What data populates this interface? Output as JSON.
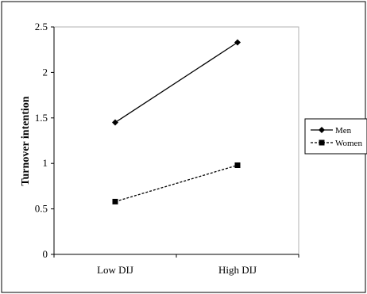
{
  "chart_data": {
    "type": "line",
    "title": "",
    "xlabel": "",
    "ylabel": "Turnover intention",
    "categories": [
      "Low DIJ",
      "High DIJ"
    ],
    "ylim": [
      0,
      2.5
    ],
    "yticks": [
      "0",
      "0.5",
      "1",
      "1.5",
      "2",
      "2.5"
    ],
    "grid": false,
    "legend_position": "right",
    "series": [
      {
        "name": "Men",
        "values": [
          1.45,
          2.33
        ],
        "marker": "diamond",
        "line_style": "solid"
      },
      {
        "name": "Women",
        "values": [
          0.58,
          0.98
        ],
        "marker": "square",
        "line_style": "dashed"
      }
    ]
  }
}
